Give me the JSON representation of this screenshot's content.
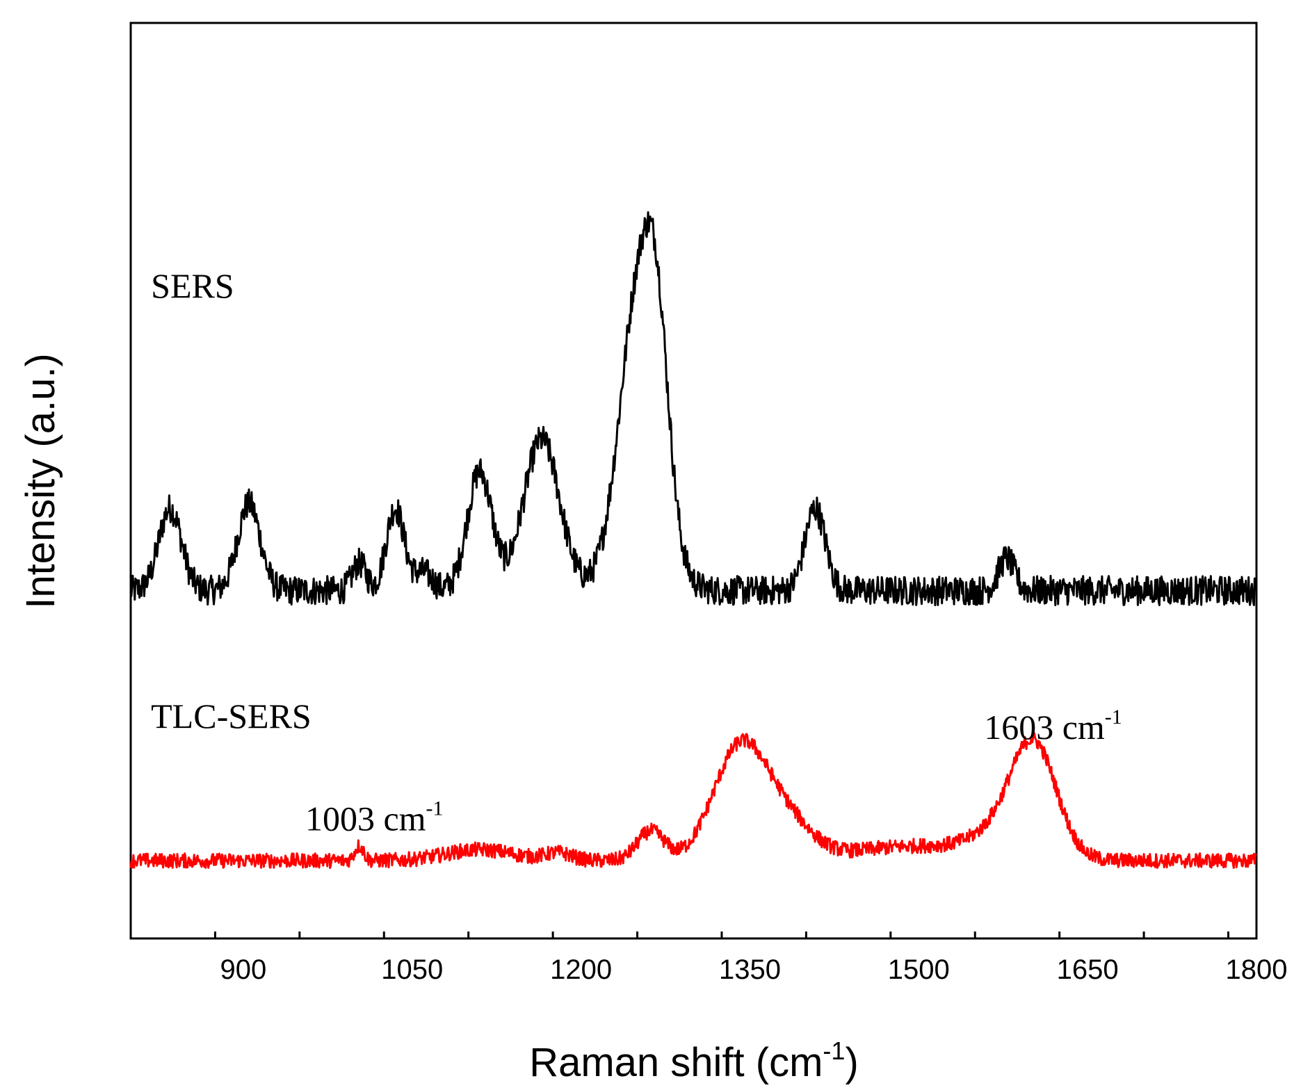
{
  "chart_data": {
    "type": "line",
    "title": "",
    "xlabel": "Raman shift (cm",
    "xlabel_sup": "-1",
    "xlabel_end": ")",
    "ylabel": "Intensity (a.u.)",
    "xlim": [
      800,
      1800
    ],
    "ylim": [
      0,
      100
    ],
    "x_ticks": [
      900,
      1050,
      1200,
      1350,
      1500,
      1650,
      1800
    ],
    "x_tick_labels": [
      "900",
      "1050",
      "1200",
      "1350",
      "1500",
      "1650",
      "1800"
    ],
    "x_minor_step": 75,
    "y_ticks_shown": false,
    "grid": false,
    "legend": "none",
    "series": [
      {
        "name": "SERS",
        "color": "#000000",
        "baseline": 38,
        "noise": 1.6,
        "peaks": [
          {
            "x": 835,
            "height": 9,
            "width": 10
          },
          {
            "x": 905,
            "height": 9.5,
            "width": 10
          },
          {
            "x": 1003,
            "height": 3,
            "width": 6
          },
          {
            "x": 1035,
            "height": 9,
            "width": 8
          },
          {
            "x": 1060,
            "height": 2,
            "width": 8
          },
          {
            "x": 1110,
            "height": 13,
            "width": 11
          },
          {
            "x": 1165,
            "height": 16.5,
            "width": 16
          },
          {
            "x": 1253,
            "height": 34,
            "width": 18
          },
          {
            "x": 1268,
            "height": 12,
            "width": 10
          },
          {
            "x": 1408,
            "height": 9,
            "width": 9
          },
          {
            "x": 1578,
            "height": 3.5,
            "width": 7
          }
        ]
      },
      {
        "name": "TLC-SERS",
        "color": "#ff0000",
        "baseline": 8.5,
        "noise": 0.8,
        "peaks": [
          {
            "x": 1003,
            "height": 1.6,
            "width": 4
          },
          {
            "x": 1110,
            "height": 1.2,
            "width": 30
          },
          {
            "x": 1180,
            "height": 0.8,
            "width": 12
          },
          {
            "x": 1262,
            "height": 3.2,
            "width": 12
          },
          {
            "x": 1342,
            "height": 12.5,
            "width": 24
          },
          {
            "x": 1385,
            "height": 3.5,
            "width": 22
          },
          {
            "x": 1500,
            "height": 1.6,
            "width": 60
          },
          {
            "x": 1603,
            "height": 11.5,
            "width": 20
          },
          {
            "x": 1575,
            "height": 2.5,
            "width": 25
          }
        ]
      }
    ],
    "annotations": [
      {
        "name": "label-sers",
        "text": "SERS",
        "x": 818,
        "y": 70
      },
      {
        "name": "label-tlc-sers",
        "text": "TLC-SERS",
        "x": 818,
        "y": 23
      },
      {
        "name": "label-1003",
        "text": "1003 cm",
        "sup": "-1",
        "x": 955,
        "y": 11.8
      },
      {
        "name": "label-1603",
        "text": "1603 cm",
        "sup": "-1",
        "x": 1558,
        "y": 21.8
      }
    ]
  }
}
